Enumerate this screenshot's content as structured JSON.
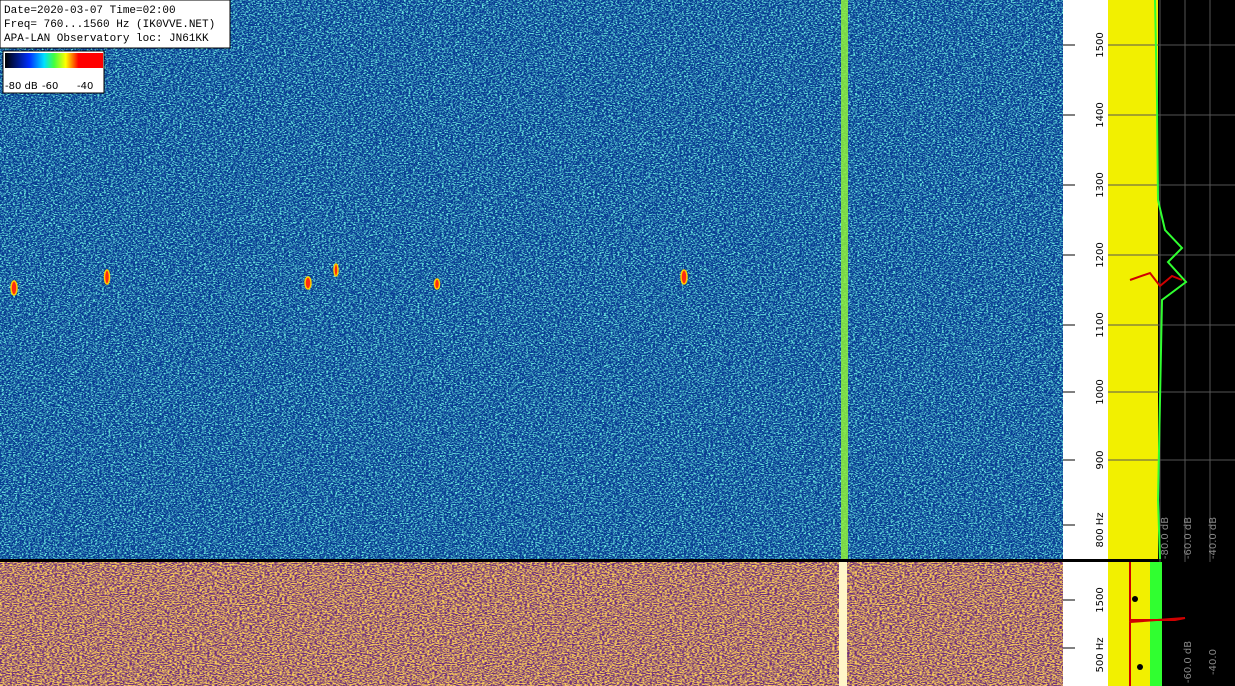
{
  "header": {
    "lines": [
      "Date=2020-03-07 Time=02:00",
      "Freq= 760...1560 Hz (IK0VVE.NET)",
      "APA-LAN Observatory loc: JN61KK"
    ]
  },
  "colorbar": {
    "labels": [
      "-80 dB",
      "-60",
      "-40"
    ]
  },
  "upper_panel": {
    "freq_labels": [
      "1500",
      "1400",
      "1300",
      "1200",
      "1100",
      "1000",
      "900",
      "800 Hz"
    ],
    "db_labels": [
      "-80.0 dB",
      "-60.0 dB",
      "-40.0 dB"
    ]
  },
  "lower_panel": {
    "freq_labels": [
      "1500",
      "500 Hz"
    ],
    "db_labels": [
      "-60.0 dB",
      "-40.0"
    ]
  }
}
